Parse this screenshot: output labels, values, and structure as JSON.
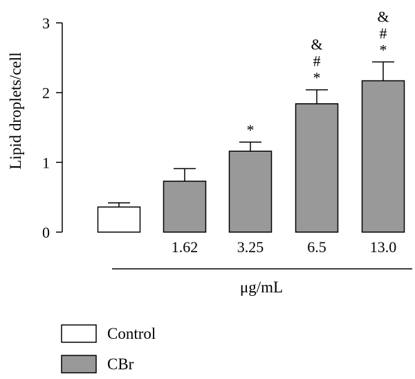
{
  "chart_data": {
    "type": "bar",
    "ylabel": "Lipid droplets/cell",
    "xlabel": "μg/mL",
    "ylim": [
      0,
      3
    ],
    "yticks": [
      0,
      1,
      2,
      3
    ],
    "grid": false,
    "legend_position": "bottom-left",
    "bars": [
      {
        "label": "",
        "value": 0.36,
        "error": 0.06,
        "group": "Control",
        "marks": []
      },
      {
        "label": "1.62",
        "value": 0.73,
        "error": 0.18,
        "group": "CBr",
        "marks": []
      },
      {
        "label": "3.25",
        "value": 1.16,
        "error": 0.13,
        "group": "CBr",
        "marks": [
          "*"
        ]
      },
      {
        "label": "6.5",
        "value": 1.84,
        "error": 0.2,
        "group": "CBr",
        "marks": [
          "*",
          "#",
          "&"
        ]
      },
      {
        "label": "13.0",
        "value": 2.17,
        "error": 0.27,
        "group": "CBr",
        "marks": [
          "*",
          "#",
          "&"
        ]
      }
    ],
    "legend": [
      {
        "name": "Control",
        "color": "#ffffff"
      },
      {
        "name": "CBr",
        "color": "#999999"
      }
    ]
  },
  "colors": {
    "control_fill": "#ffffff",
    "treated_fill": "#999999",
    "stroke": "#000000"
  }
}
